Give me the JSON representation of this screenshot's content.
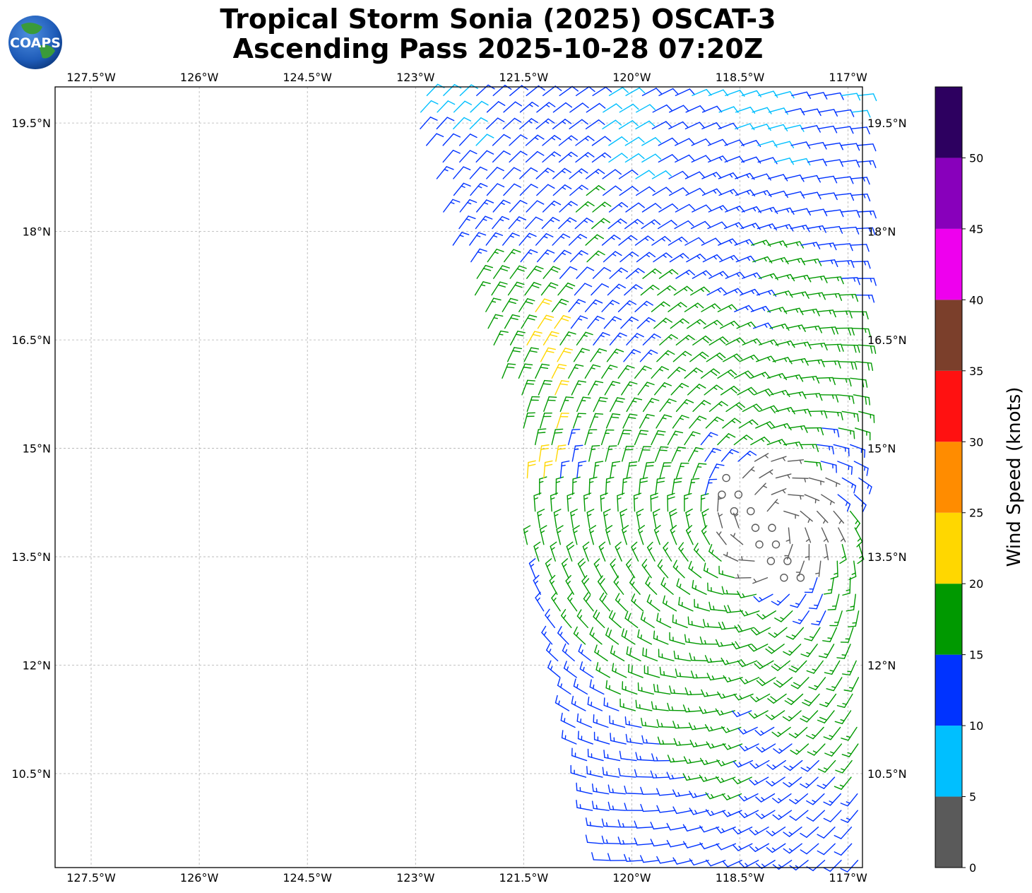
{
  "logo": {
    "text": "COAPS"
  },
  "title": {
    "line1": "Tropical Storm Sonia (2025) OSCAT-3",
    "line2": "Ascending Pass 2025-10-28 07:20Z"
  },
  "colorbar": {
    "label": "Wind Speed (knots)",
    "ticks": [
      "0",
      "5",
      "10",
      "15",
      "20",
      "25",
      "30",
      "35",
      "40",
      "45",
      "50"
    ],
    "bins": [
      {
        "min": 0,
        "max": 5,
        "color": "#5a5a5a"
      },
      {
        "min": 5,
        "max": 10,
        "color": "#00bfff"
      },
      {
        "min": 10,
        "max": 15,
        "color": "#0033ff"
      },
      {
        "min": 15,
        "max": 20,
        "color": "#009900"
      },
      {
        "min": 20,
        "max": 25,
        "color": "#ffd700"
      },
      {
        "min": 25,
        "max": 30,
        "color": "#ff8c00"
      },
      {
        "min": 30,
        "max": 35,
        "color": "#ff1111"
      },
      {
        "min": 35,
        "max": 40,
        "color": "#7b3f2b"
      },
      {
        "min": 40,
        "max": 45,
        "color": "#ee00ee"
      },
      {
        "min": 45,
        "max": 50,
        "color": "#8800bb"
      },
      {
        "min": 50,
        "max": 55,
        "color": "#2d0060"
      }
    ]
  },
  "chart_data": {
    "type": "wind-barbs",
    "lon_labels": [
      "127.5°W",
      "126°W",
      "124.5°W",
      "123°W",
      "121.5°W",
      "120°W",
      "118.5°W",
      "117°W"
    ],
    "lon_values": [
      -127.5,
      -126,
      -124.5,
      -123,
      -121.5,
      -120,
      -118.5,
      -117
    ],
    "lat_labels": [
      "19.5°N",
      "18°N",
      "16.5°N",
      "15°N",
      "13.5°N",
      "12°N",
      "10.5°N"
    ],
    "lat_values": [
      19.5,
      18,
      16.5,
      15,
      13.5,
      12,
      10.5
    ],
    "xlim": [
      -128.0,
      -116.8
    ],
    "ylim": [
      9.2,
      20.0
    ],
    "grid": true,
    "storm_center": {
      "lon": -118.0,
      "lat": 14.0
    },
    "swath": [
      [
        -123.1,
        20.0
      ],
      [
        -116.8,
        20.0
      ],
      [
        -116.8,
        9.2
      ],
      [
        -120.5,
        9.2
      ],
      [
        -121.5,
        13.6
      ],
      [
        -121.5,
        15.1
      ],
      [
        -122.5,
        17.8
      ]
    ]
  }
}
